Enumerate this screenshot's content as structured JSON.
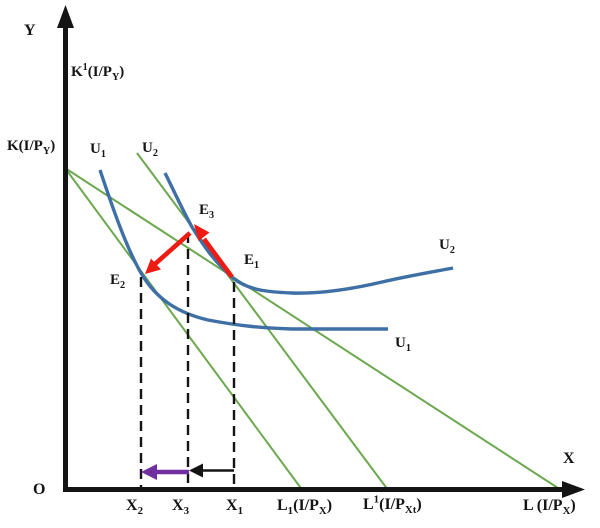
{
  "figure": {
    "type": "indifference-curve-price-effect-diagram",
    "colors": {
      "axis": "#141414",
      "indifference_curve": "#3e6fa5",
      "budget_line": "#6ba84e",
      "effect_arrow_red": "#ee1b12",
      "substitution_arrow_black": "#141414",
      "income_arrow_purple": "#7030a0",
      "guide_dash": "#141414",
      "text": "#141414"
    },
    "labels": {
      "y_axis": [
        {
          "t": "Y"
        }
      ],
      "x_axis": [
        {
          "t": "X"
        }
      ],
      "origin": [
        {
          "t": "O"
        }
      ],
      "y_intercept_compensated": [
        {
          "t": "K"
        },
        {
          "t": "1",
          "s": "sup"
        },
        {
          "t": "(I/P"
        },
        {
          "t": "Y",
          "s": "sub"
        },
        {
          "t": ")"
        }
      ],
      "y_intercept": [
        {
          "t": "K(I/P"
        },
        {
          "t": "Y",
          "s": "sub"
        },
        {
          "t": ")"
        }
      ],
      "u1_upper": [
        {
          "t": "U"
        },
        {
          "t": "1",
          "s": "sub"
        }
      ],
      "u2_upper": [
        {
          "t": "U"
        },
        {
          "t": "2",
          "s": "sub"
        }
      ],
      "u2_right": [
        {
          "t": "U"
        },
        {
          "t": "2",
          "s": "sub"
        }
      ],
      "u1_right": [
        {
          "t": "U"
        },
        {
          "t": "1",
          "s": "sub"
        }
      ],
      "e1": [
        {
          "t": "E"
        },
        {
          "t": "1",
          "s": "sub"
        }
      ],
      "e2": [
        {
          "t": "E"
        },
        {
          "t": "2",
          "s": "sub"
        }
      ],
      "e3": [
        {
          "t": "E"
        },
        {
          "t": "3",
          "s": "sub"
        }
      ],
      "x2": [
        {
          "t": "X"
        },
        {
          "t": "2",
          "s": "sub"
        }
      ],
      "x3": [
        {
          "t": "X"
        },
        {
          "t": "3",
          "s": "sub"
        }
      ],
      "x1": [
        {
          "t": "X"
        },
        {
          "t": "1",
          "s": "sub"
        }
      ],
      "x_intercept_new": [
        {
          "t": "L"
        },
        {
          "t": "1",
          "s": "sub"
        },
        {
          "t": "(I/P"
        },
        {
          "t": "X",
          "s": "sub"
        },
        {
          "t": ")"
        }
      ],
      "x_intercept_compensated": [
        {
          "t": "L"
        },
        {
          "t": "1",
          "s": "sup"
        },
        {
          "t": "(I/P"
        },
        {
          "t": "Xt",
          "s": "sub"
        },
        {
          "t": ")"
        }
      ],
      "x_intercept_original": [
        {
          "t": "L (I/P"
        },
        {
          "t": "X",
          "s": "sub"
        },
        {
          "t": ")"
        }
      ]
    }
  }
}
